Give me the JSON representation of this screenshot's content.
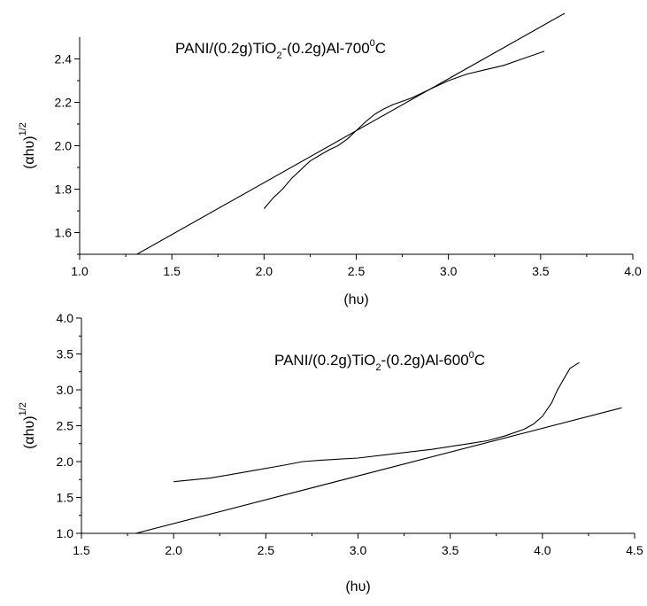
{
  "chart_data": [
    {
      "type": "line",
      "title": "",
      "annotation": {
        "parts": [
          {
            "t": "PANI/(0.2g)TiO",
            "s": "n"
          },
          {
            "t": "2",
            "s": "sub"
          },
          {
            "t": "-(0.2g)Al-700",
            "s": "n"
          },
          {
            "t": "0",
            "s": "sup"
          },
          {
            "t": "C",
            "s": "n"
          }
        ]
      },
      "xlabel": "(hυ)",
      "ylabel": {
        "base": "(αhυ)",
        "sup": "1/2"
      },
      "xlim": [
        1.0,
        4.0
      ],
      "ylim": [
        1.5,
        2.5
      ],
      "xticks": [
        "1.0",
        "1.5",
        "2.0",
        "2.5",
        "3.0",
        "3.5",
        "4.0"
      ],
      "yticks": [
        "1.6",
        "1.8",
        "2.0",
        "2.2",
        "2.4"
      ],
      "grid": false,
      "series": [
        {
          "kind": "data",
          "x": [
            2.0,
            2.05,
            2.1,
            2.15,
            2.2,
            2.25,
            2.3,
            2.35,
            2.4,
            2.45,
            2.5,
            2.55,
            2.6,
            2.65,
            2.7,
            2.8,
            2.9,
            3.0,
            3.1,
            3.2,
            3.3,
            3.4,
            3.52
          ],
          "y": [
            1.71,
            1.76,
            1.8,
            1.85,
            1.89,
            1.93,
            1.955,
            1.98,
            2.0,
            2.03,
            2.07,
            2.11,
            2.145,
            2.17,
            2.19,
            2.22,
            2.26,
            2.3,
            2.33,
            2.35,
            2.37,
            2.4,
            2.435
          ]
        },
        {
          "kind": "fit",
          "x": [
            1.3,
            3.63
          ],
          "y": [
            1.495,
            2.61
          ]
        }
      ]
    },
    {
      "type": "line",
      "title": "",
      "annotation": {
        "parts": [
          {
            "t": "PANI/(0.2g)TiO",
            "s": "n"
          },
          {
            "t": "2",
            "s": "sub"
          },
          {
            "t": "-(0.2g)Al-600",
            "s": "n"
          },
          {
            "t": "0",
            "s": "sup"
          },
          {
            "t": "C",
            "s": "n"
          }
        ]
      },
      "xlabel": "(hυ)",
      "ylabel": {
        "base": "(αhυ)",
        "sup": "1/2"
      },
      "xlim": [
        1.5,
        4.5
      ],
      "ylim": [
        1.0,
        4.0
      ],
      "xticks": [
        "1.5",
        "2.0",
        "2.5",
        "3.0",
        "3.5",
        "4.0",
        "4.5"
      ],
      "yticks": [
        "1.0",
        "1.5",
        "2.0",
        "2.5",
        "3.0",
        "3.5",
        "4.0"
      ],
      "grid": false,
      "series": [
        {
          "kind": "data",
          "x": [
            2.0,
            2.2,
            2.4,
            2.6,
            2.7,
            2.8,
            3.0,
            3.2,
            3.4,
            3.6,
            3.7,
            3.8,
            3.9,
            3.95,
            4.0,
            4.05,
            4.08,
            4.12,
            4.15,
            4.2
          ],
          "y": [
            1.72,
            1.77,
            1.86,
            1.95,
            2.0,
            2.02,
            2.05,
            2.11,
            2.17,
            2.25,
            2.29,
            2.36,
            2.45,
            2.52,
            2.63,
            2.82,
            2.99,
            3.17,
            3.3,
            3.38
          ]
        },
        {
          "kind": "fit",
          "x": [
            1.75,
            4.43
          ],
          "y": [
            0.97,
            2.75
          ]
        }
      ]
    }
  ]
}
